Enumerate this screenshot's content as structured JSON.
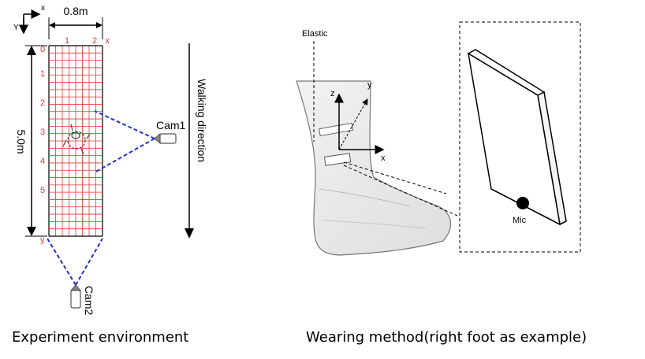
{
  "left_panel": {
    "caption": "Experiment environment",
    "axis_x": "x",
    "axis_y": "Y",
    "width_label": "0.8m",
    "length_label": "5.0m",
    "col_labels": [
      "1",
      "2",
      "x"
    ],
    "row_labels": [
      "0",
      "1",
      "2",
      "3",
      "4",
      "5",
      "y"
    ],
    "walking_label": "Walking direction",
    "cam1_label": "Cam1",
    "cam2_label": "Cam2"
  },
  "right_panel": {
    "caption": "Wearing method(right foot as example)",
    "elastic_label": "Elastic",
    "axis_z": "z",
    "axis_y": "y",
    "axis_x": "x",
    "mic_label": "Mic"
  },
  "colors": {
    "grid": "#e53935",
    "dashed": "#2233cc",
    "ink": "#000000"
  }
}
